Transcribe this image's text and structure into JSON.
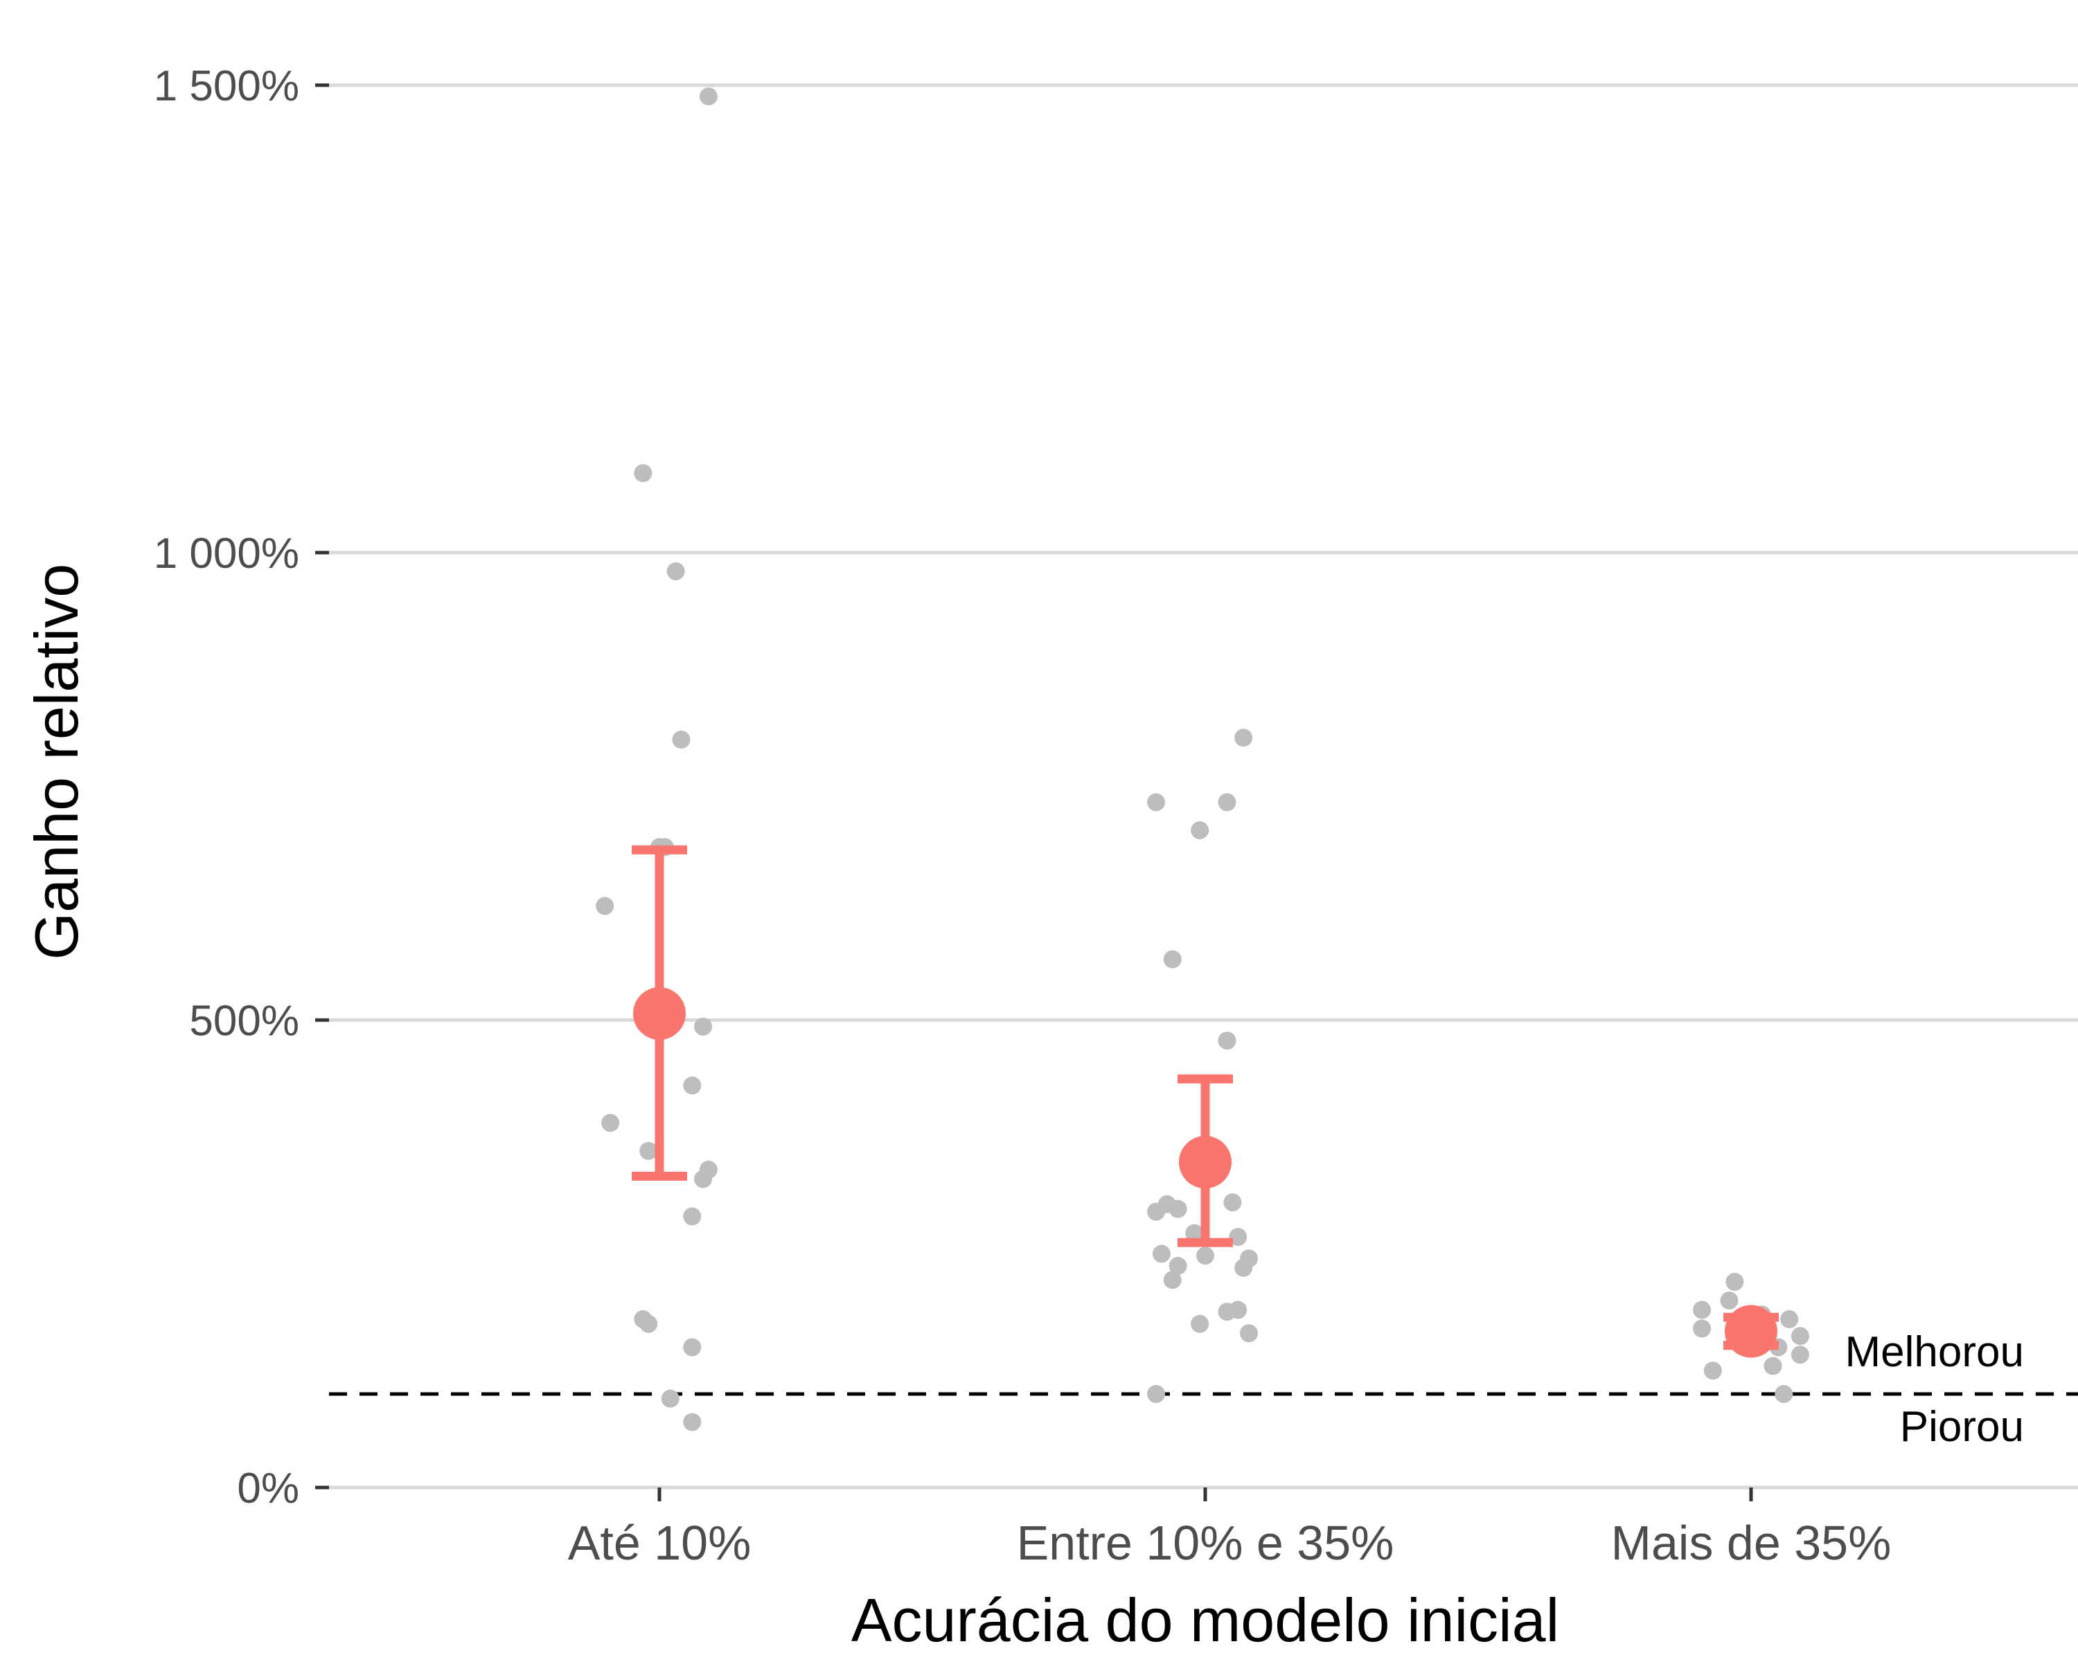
{
  "chart_data": {
    "type": "scatter",
    "xlabel": "Acurácia do modelo inicial",
    "ylabel": "Ganho relativo",
    "categories": [
      "Até 10%",
      "Entre 10% e 35%",
      "Mais de 35%"
    ],
    "y_ticks": [
      {
        "value": 0,
        "label": "0%"
      },
      {
        "value": 5,
        "label": "500%"
      },
      {
        "value": 10,
        "label": "1 000%"
      },
      {
        "value": 15,
        "label": "1 500%"
      }
    ],
    "ylim": [
      -0.6,
      15.7
    ],
    "grid": "horizontal major",
    "colors": {
      "points": "#bdbdbd",
      "summary": "#f8766d",
      "grid": "#d9d9d9",
      "reference": "#000000"
    },
    "points": [
      {
        "category": "Até 10%",
        "jitter": 0.09,
        "y": 14.88
      },
      {
        "category": "Até 10%",
        "jitter": -0.03,
        "y": 10.85
      },
      {
        "category": "Até 10%",
        "jitter": 0.03,
        "y": 9.8
      },
      {
        "category": "Até 10%",
        "jitter": 0.04,
        "y": 8.0
      },
      {
        "category": "Até 10%",
        "jitter": 0.0,
        "y": 6.85
      },
      {
        "category": "Até 10%",
        "jitter": 0.01,
        "y": 6.85
      },
      {
        "category": "Até 10%",
        "jitter": -0.1,
        "y": 6.22
      },
      {
        "category": "Até 10%",
        "jitter": 0.08,
        "y": 4.93
      },
      {
        "category": "Até 10%",
        "jitter": 0.06,
        "y": 4.3
      },
      {
        "category": "Até 10%",
        "jitter": -0.09,
        "y": 3.9
      },
      {
        "category": "Até 10%",
        "jitter": -0.02,
        "y": 3.6
      },
      {
        "category": "Até 10%",
        "jitter": 0.09,
        "y": 3.4
      },
      {
        "category": "Até 10%",
        "jitter": 0.08,
        "y": 3.3
      },
      {
        "category": "Até 10%",
        "jitter": 0.06,
        "y": 2.9
      },
      {
        "category": "Até 10%",
        "jitter": -0.03,
        "y": 1.8
      },
      {
        "category": "Até 10%",
        "jitter": -0.02,
        "y": 1.75
      },
      {
        "category": "Até 10%",
        "jitter": 0.06,
        "y": 1.5
      },
      {
        "category": "Até 10%",
        "jitter": 0.02,
        "y": 0.95
      },
      {
        "category": "Até 10%",
        "jitter": 0.06,
        "y": 0.7
      },
      {
        "category": "Entre 10% e 35%",
        "jitter": 0.07,
        "y": 8.02
      },
      {
        "category": "Entre 10% e 35%",
        "jitter": -0.09,
        "y": 7.33
      },
      {
        "category": "Entre 10% e 35%",
        "jitter": 0.04,
        "y": 7.33
      },
      {
        "category": "Entre 10% e 35%",
        "jitter": -0.01,
        "y": 7.03
      },
      {
        "category": "Entre 10% e 35%",
        "jitter": -0.06,
        "y": 5.65
      },
      {
        "category": "Entre 10% e 35%",
        "jitter": 0.04,
        "y": 4.78
      },
      {
        "category": "Entre 10% e 35%",
        "jitter": 0.05,
        "y": 3.05
      },
      {
        "category": "Entre 10% e 35%",
        "jitter": -0.07,
        "y": 3.03
      },
      {
        "category": "Entre 10% e 35%",
        "jitter": -0.05,
        "y": 2.98
      },
      {
        "category": "Entre 10% e 35%",
        "jitter": -0.09,
        "y": 2.95
      },
      {
        "category": "Entre 10% e 35%",
        "jitter": -0.02,
        "y": 2.72
      },
      {
        "category": "Entre 10% e 35%",
        "jitter": 0.06,
        "y": 2.68
      },
      {
        "category": "Entre 10% e 35%",
        "jitter": -0.08,
        "y": 2.5
      },
      {
        "category": "Entre 10% e 35%",
        "jitter": 0.0,
        "y": 2.48
      },
      {
        "category": "Entre 10% e 35%",
        "jitter": 0.08,
        "y": 2.45
      },
      {
        "category": "Entre 10% e 35%",
        "jitter": -0.05,
        "y": 2.37
      },
      {
        "category": "Entre 10% e 35%",
        "jitter": 0.07,
        "y": 2.35
      },
      {
        "category": "Entre 10% e 35%",
        "jitter": -0.06,
        "y": 2.22
      },
      {
        "category": "Entre 10% e 35%",
        "jitter": 0.06,
        "y": 1.9
      },
      {
        "category": "Entre 10% e 35%",
        "jitter": 0.04,
        "y": 1.88
      },
      {
        "category": "Entre 10% e 35%",
        "jitter": -0.01,
        "y": 1.75
      },
      {
        "category": "Entre 10% e 35%",
        "jitter": 0.08,
        "y": 1.65
      },
      {
        "category": "Entre 10% e 35%",
        "jitter": -0.09,
        "y": 1.0
      },
      {
        "category": "Mais de 35%",
        "jitter": -0.03,
        "y": 2.2
      },
      {
        "category": "Mais de 35%",
        "jitter": -0.04,
        "y": 2.0
      },
      {
        "category": "Mais de 35%",
        "jitter": -0.09,
        "y": 1.9
      },
      {
        "category": "Mais de 35%",
        "jitter": 0.02,
        "y": 1.85
      },
      {
        "category": "Mais de 35%",
        "jitter": 0.07,
        "y": 1.8
      },
      {
        "category": "Mais de 35%",
        "jitter": -0.09,
        "y": 1.7
      },
      {
        "category": "Mais de 35%",
        "jitter": 0.09,
        "y": 1.62
      },
      {
        "category": "Mais de 35%",
        "jitter": 0.05,
        "y": 1.5
      },
      {
        "category": "Mais de 35%",
        "jitter": 0.09,
        "y": 1.42
      },
      {
        "category": "Mais de 35%",
        "jitter": 0.04,
        "y": 1.3
      },
      {
        "category": "Mais de 35%",
        "jitter": -0.07,
        "y": 1.25
      },
      {
        "category": "Mais de 35%",
        "jitter": 0.06,
        "y": 1.0
      }
    ],
    "summary": [
      {
        "category": "Até 10%",
        "mean": 5.07,
        "ci_low": 3.33,
        "ci_high": 6.82
      },
      {
        "category": "Entre 10% e 35%",
        "mean": 3.48,
        "ci_low": 2.62,
        "ci_high": 4.37
      },
      {
        "category": "Mais de 35%",
        "mean": 1.67,
        "ci_low": 1.52,
        "ci_high": 1.82
      }
    ],
    "reference_line": {
      "y": 1.0,
      "style": "dashed"
    },
    "annotations": {
      "above": "Melhorou",
      "below": "Piorou"
    }
  }
}
